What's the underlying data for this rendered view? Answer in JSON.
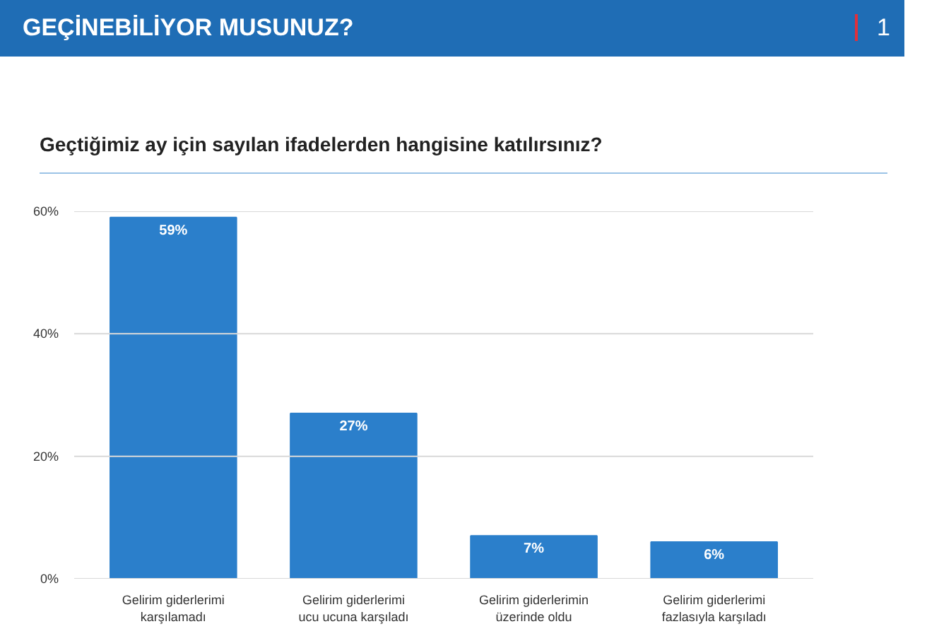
{
  "chart_data": {
    "type": "bar",
    "title": "GEÇİNEBİLİYOR MUSUNUZ?",
    "subtitle": "Geçtiğimiz ay için sayılan ifadelerden hangisine katılırsınız?",
    "annotations": [
      "1"
    ],
    "categories": [
      "Gelirim giderlerimi karşılamadı",
      "Gelirim giderlerimi ucu ucuna karşıladı",
      "Gelirim giderlerimin üzerinde oldu",
      "Gelirim giderlerimi fazlasıyla karşıladı"
    ],
    "values": [
      59,
      27,
      7,
      6
    ],
    "color": "#2b7fcb",
    "value_labels": [
      "59%",
      "27%",
      "7%",
      "6%"
    ],
    "ylim": [
      0,
      60
    ],
    "yticks": [
      {
        "value": 0,
        "label": "0%"
      },
      {
        "value": 20,
        "label": "20%"
      },
      {
        "value": 40,
        "label": "40%"
      },
      {
        "value": 60,
        "label": "60%"
      }
    ],
    "grid": "y"
  }
}
